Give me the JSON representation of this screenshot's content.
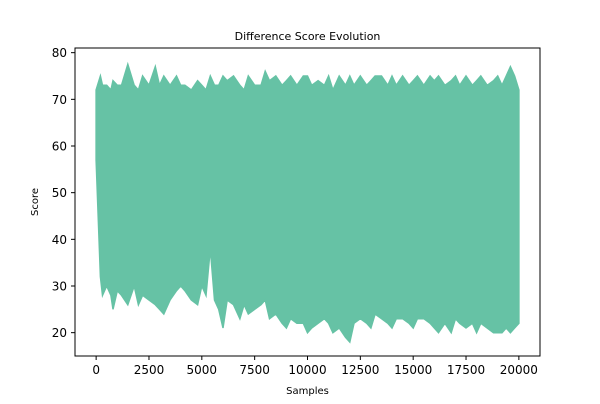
{
  "chart_data": {
    "type": "line",
    "title": "Difference Score Evolution",
    "xlabel": "Samples",
    "ylabel": "Score",
    "xlim": [
      -1000,
      21000
    ],
    "ylim": [
      15,
      81
    ],
    "xticks": [
      0,
      2500,
      5000,
      7500,
      10000,
      12500,
      15000,
      17500,
      20000
    ],
    "xtick_labels": [
      "0",
      "2500",
      "5000",
      "7500",
      "10000",
      "12500",
      "15000",
      "17500",
      "20000"
    ],
    "yticks": [
      20,
      30,
      40,
      50,
      60,
      70,
      80
    ],
    "ytick_labels": [
      "20",
      "30",
      "40",
      "50",
      "60",
      "70",
      "80"
    ],
    "grid": false,
    "legend": false,
    "line_color": "#66c2a5",
    "series": [
      {
        "x": [
          0,
          200,
          300,
          500,
          700,
          800,
          1000,
          1200,
          1500,
          1800,
          2000,
          2200,
          2500,
          2800,
          3000,
          3200,
          3500,
          3800,
          4000,
          4200,
          4500,
          4800,
          5000,
          5200,
          5400,
          5600,
          5800,
          6000,
          6200,
          6500,
          6800,
          7000,
          7200,
          7500,
          7800,
          8000,
          8200,
          8500,
          8800,
          9000,
          9200,
          9500,
          9800,
          10000,
          10200,
          10500,
          10800,
          11000,
          11200,
          11500,
          11800,
          12000,
          12200,
          12500,
          12800,
          13000,
          13200,
          13500,
          13800,
          14000,
          14200,
          14500,
          14800,
          15000,
          15200,
          15500,
          15800,
          16000,
          16200,
          16500,
          16800,
          17000,
          17200,
          17500,
          17800,
          18000,
          18200,
          18500,
          18800,
          19000,
          19200,
          19400,
          19600,
          19800,
          20000
        ],
        "y_max": [
          72,
          75,
          73,
          73,
          72,
          74,
          73,
          73,
          77.5,
          73,
          72,
          75,
          73,
          77,
          73,
          75,
          73,
          75,
          73,
          73,
          72,
          74,
          73,
          72,
          75,
          73,
          73,
          75,
          74,
          75,
          73,
          72,
          75,
          73,
          73,
          76,
          74,
          75,
          73,
          74,
          75,
          73,
          75,
          75,
          73,
          74,
          73,
          75,
          72,
          75,
          73,
          75,
          73,
          75,
          73,
          74,
          75,
          75,
          73,
          75,
          73,
          75,
          73,
          74,
          75,
          73,
          75,
          74,
          75,
          73,
          74,
          75,
          73,
          75,
          73,
          74,
          75,
          73,
          74,
          75,
          73,
          75,
          77,
          75,
          72
        ],
        "y_min": [
          57,
          32,
          28,
          30,
          28,
          25,
          29,
          28,
          26,
          30,
          26,
          28,
          27,
          26,
          25,
          24,
          27,
          29,
          30,
          29,
          27,
          26,
          30,
          28,
          38,
          27,
          25,
          21,
          27,
          26,
          23,
          26,
          24,
          25,
          26,
          27,
          23,
          24,
          22,
          21,
          23,
          22,
          22,
          20,
          21,
          22,
          23,
          22,
          20,
          21,
          19,
          18,
          22,
          23,
          22,
          21,
          24,
          23,
          22,
          21,
          23,
          23,
          22,
          21,
          23,
          23,
          22,
          21,
          20,
          22,
          20,
          23,
          22,
          21,
          22,
          20,
          22,
          21,
          20,
          20,
          20,
          21,
          20,
          21,
          22
        ]
      }
    ]
  }
}
